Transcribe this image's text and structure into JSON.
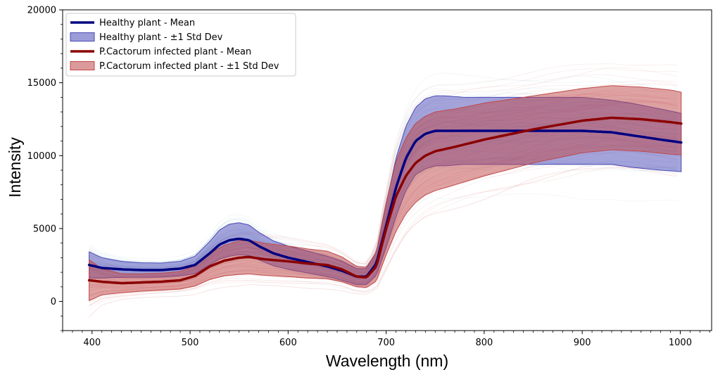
{
  "chart_data": {
    "type": "line",
    "xlabel": "Wavelength (nm)",
    "ylabel": "Intensity",
    "xlim": [
      370,
      1032
    ],
    "ylim": [
      -2000,
      20000
    ],
    "xticks": [
      400,
      500,
      600,
      700,
      800,
      900,
      1000
    ],
    "yticks": [
      0,
      5000,
      10000,
      15000,
      20000
    ],
    "x_minor_step": 10,
    "y_minor_step": 1000,
    "grid": false,
    "legend_position": "upper-left",
    "colors": {
      "healthy_mean": "#000080",
      "healthy_band": "#4a4ab8",
      "healthy_samples": "#9fc6d8",
      "infected_mean": "#8b0000",
      "infected_band": "#c04848",
      "infected_samples": "#e08888"
    },
    "legend": [
      {
        "label": "Healthy plant -  Mean",
        "kind": "line",
        "color": "#000080"
      },
      {
        "label": "Healthy plant -  ±1 Std Dev",
        "kind": "patch",
        "color": "#4a4ab8"
      },
      {
        "label": "P.Cactorum infected plant -  Mean",
        "kind": "line",
        "color": "#8b0000"
      },
      {
        "label": "P.Cactorum infected plant -  ±1 Std Dev",
        "kind": "patch",
        "color": "#c04848"
      }
    ],
    "series": [
      {
        "name": "Healthy plant -  Mean",
        "x": [
          397,
          410,
          430,
          450,
          470,
          490,
          505,
          520,
          530,
          540,
          550,
          560,
          570,
          585,
          600,
          620,
          640,
          655,
          670,
          680,
          690,
          700,
          710,
          720,
          730,
          740,
          750,
          760,
          780,
          800,
          850,
          900,
          930,
          950,
          980,
          1001
        ],
        "mean": [
          2500,
          2300,
          2200,
          2150,
          2150,
          2250,
          2500,
          3300,
          3900,
          4200,
          4300,
          4200,
          3800,
          3300,
          3000,
          2700,
          2400,
          2100,
          1700,
          1700,
          2600,
          5200,
          7800,
          9800,
          11000,
          11500,
          11700,
          11700,
          11700,
          11700,
          11700,
          11700,
          11600,
          11400,
          11100,
          10900
        ],
        "std": [
          900,
          700,
          550,
          500,
          480,
          500,
          600,
          800,
          1000,
          1100,
          1100,
          1050,
          950,
          850,
          800,
          750,
          700,
          650,
          550,
          550,
          800,
          1500,
          2000,
          2200,
          2300,
          2400,
          2400,
          2400,
          2300,
          2300,
          2300,
          2300,
          2200,
          2200,
          2100,
          2000
        ]
      },
      {
        "name": "P.Cactorum infected plant -  Mean",
        "x": [
          397,
          410,
          430,
          450,
          470,
          490,
          505,
          520,
          535,
          550,
          560,
          575,
          600,
          620,
          640,
          655,
          670,
          680,
          690,
          700,
          710,
          720,
          730,
          740,
          750,
          770,
          800,
          850,
          900,
          930,
          960,
          990,
          1001
        ],
        "mean": [
          1450,
          1350,
          1250,
          1300,
          1350,
          1450,
          1750,
          2400,
          2800,
          3000,
          3050,
          2900,
          2750,
          2600,
          2500,
          2200,
          1700,
          1650,
          2400,
          5000,
          7200,
          8600,
          9500,
          10000,
          10300,
          10600,
          11100,
          11800,
          12400,
          12600,
          12500,
          12300,
          12200
        ],
        "std": [
          1400,
          900,
          650,
          600,
          580,
          600,
          700,
          900,
          1050,
          1150,
          1150,
          1100,
          1050,
          1000,
          950,
          850,
          700,
          700,
          1000,
          1800,
          2400,
          2600,
          2700,
          2700,
          2700,
          2600,
          2500,
          2300,
          2200,
          2200,
          2200,
          2200,
          2150
        ]
      }
    ]
  }
}
